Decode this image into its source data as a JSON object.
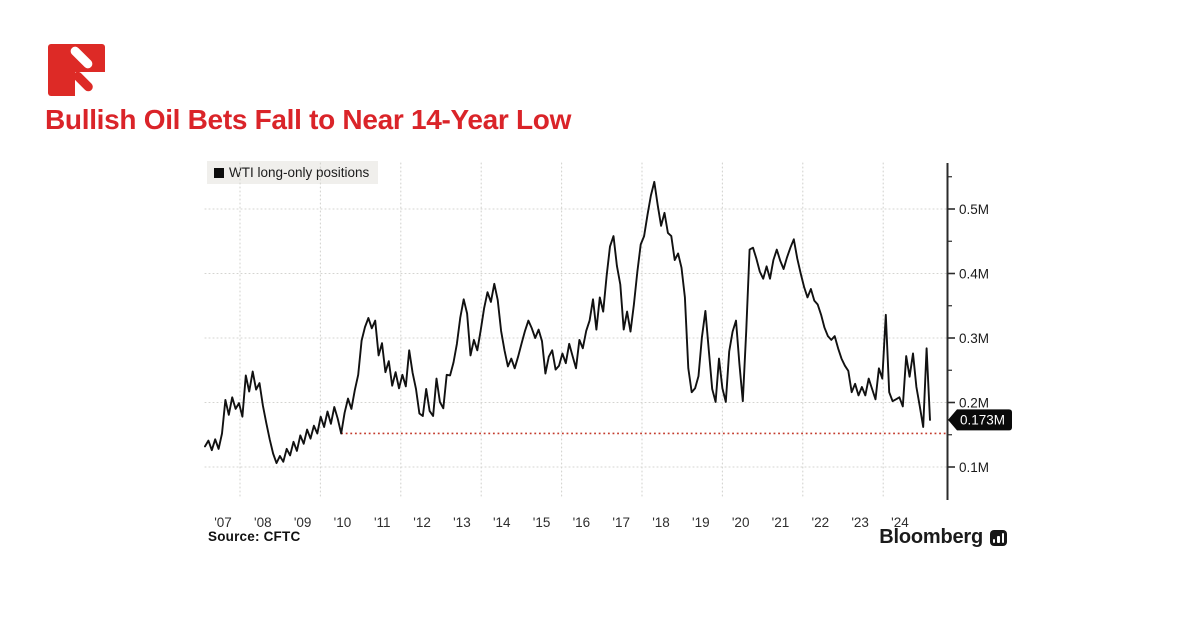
{
  "page": {
    "background": "#ffffff"
  },
  "header": {
    "title": "Bullish Oil Bets Fall to Near 14-Year Low",
    "title_color": "#da2429",
    "logo_color": "#dd2a26"
  },
  "chart_data": {
    "type": "line",
    "title": "Bullish Oil Bets Fall to Near 14-Year Low",
    "legend": {
      "label": "WTI long-only positions",
      "position": "top-left",
      "marker": "black-square"
    },
    "series": [
      {
        "name": "WTI long-only positions",
        "color": "#111111",
        "unit": "million contracts",
        "frequency": "monthly",
        "start": "2007-01",
        "end": "2024-10",
        "values": [
          0.132,
          0.141,
          0.126,
          0.143,
          0.128,
          0.152,
          0.204,
          0.181,
          0.208,
          0.19,
          0.199,
          0.178,
          0.242,
          0.217,
          0.248,
          0.22,
          0.23,
          0.195,
          0.168,
          0.143,
          0.121,
          0.106,
          0.117,
          0.108,
          0.128,
          0.118,
          0.139,
          0.125,
          0.149,
          0.136,
          0.158,
          0.144,
          0.164,
          0.152,
          0.178,
          0.162,
          0.186,
          0.167,
          0.193,
          0.175,
          0.152,
          0.184,
          0.206,
          0.19,
          0.219,
          0.243,
          0.296,
          0.317,
          0.331,
          0.315,
          0.327,
          0.273,
          0.292,
          0.247,
          0.264,
          0.226,
          0.247,
          0.222,
          0.243,
          0.225,
          0.281,
          0.246,
          0.221,
          0.183,
          0.179,
          0.221,
          0.187,
          0.179,
          0.237,
          0.201,
          0.191,
          0.243,
          0.242,
          0.262,
          0.291,
          0.332,
          0.36,
          0.338,
          0.273,
          0.297,
          0.281,
          0.312,
          0.346,
          0.371,
          0.356,
          0.384,
          0.359,
          0.311,
          0.281,
          0.256,
          0.268,
          0.253,
          0.271,
          0.291,
          0.311,
          0.327,
          0.315,
          0.3,
          0.313,
          0.295,
          0.245,
          0.271,
          0.281,
          0.251,
          0.257,
          0.276,
          0.261,
          0.291,
          0.272,
          0.253,
          0.297,
          0.284,
          0.311,
          0.327,
          0.36,
          0.313,
          0.363,
          0.341,
          0.396,
          0.442,
          0.458,
          0.412,
          0.383,
          0.313,
          0.341,
          0.31,
          0.352,
          0.402,
          0.445,
          0.458,
          0.491,
          0.521,
          0.542,
          0.506,
          0.474,
          0.494,
          0.463,
          0.458,
          0.421,
          0.431,
          0.409,
          0.363,
          0.253,
          0.216,
          0.222,
          0.241,
          0.301,
          0.342,
          0.281,
          0.221,
          0.201,
          0.268,
          0.222,
          0.201,
          0.279,
          0.31,
          0.327,
          0.26,
          0.202,
          0.31,
          0.437,
          0.44,
          0.423,
          0.403,
          0.392,
          0.411,
          0.392,
          0.421,
          0.437,
          0.42,
          0.407,
          0.425,
          0.44,
          0.453,
          0.423,
          0.4,
          0.379,
          0.363,
          0.376,
          0.358,
          0.352,
          0.336,
          0.316,
          0.303,
          0.297,
          0.303,
          0.284,
          0.268,
          0.257,
          0.249,
          0.216,
          0.229,
          0.211,
          0.224,
          0.211,
          0.237,
          0.221,
          0.205,
          0.253,
          0.237,
          0.336,
          0.216,
          0.202,
          0.205,
          0.208,
          0.194,
          0.272,
          0.24,
          0.276,
          0.224,
          0.194,
          0.162,
          0.284,
          0.173
        ]
      }
    ],
    "x_tick_labels": [
      "'07",
      "'08",
      "'09",
      "'10",
      "'11",
      "'12",
      "'13",
      "'14",
      "'15",
      "'16",
      "'17",
      "'18",
      "'19",
      "'20",
      "'21",
      "'22",
      "'23",
      "'24"
    ],
    "y_ticks": [
      {
        "label": "0.1M",
        "value": 0.1
      },
      {
        "label": "0.2M",
        "value": 0.2
      },
      {
        "label": "0.3M",
        "value": 0.3
      },
      {
        "label": "0.4M",
        "value": 0.4
      },
      {
        "label": "0.5M",
        "value": 0.5
      }
    ],
    "y_minor_ticks": [
      0.15,
      0.25,
      0.35,
      0.45,
      0.55
    ],
    "ylim": [
      0.048,
      0.571
    ],
    "grid": "dotted",
    "grid_color": "#d4d4d0",
    "axis_color": "#2b2b2b",
    "annotations": {
      "last_value": 0.173,
      "last_value_label": "0.173M",
      "tag_bg": "#0a0a0a",
      "tag_text_color": "#ffffff",
      "low_reference_line": {
        "value": 0.152,
        "start_index": 40,
        "color": "#c43b2c",
        "style": "dotted"
      }
    },
    "source": "Source: CFTC",
    "credit": "Bloomberg"
  }
}
